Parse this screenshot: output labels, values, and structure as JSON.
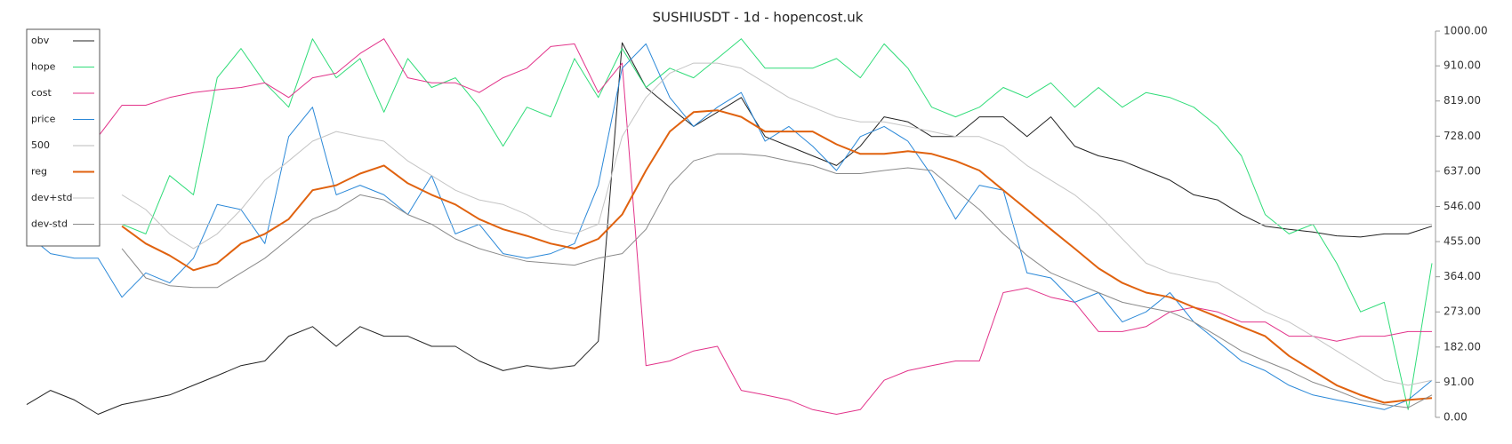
{
  "chart_data": {
    "type": "line",
    "title": "SUSHIUSDT - 1d - hopencost.uk",
    "ylim": [
      0,
      1000
    ],
    "yticks": [
      {
        "value": 0,
        "label": "0.00"
      },
      {
        "value": 91,
        "label": "91.00"
      },
      {
        "value": 182,
        "label": "182.00"
      },
      {
        "value": 273,
        "label": "273.00"
      },
      {
        "value": 364,
        "label": "364.00"
      },
      {
        "value": 455,
        "label": "455.00"
      },
      {
        "value": 546,
        "label": "546.00"
      },
      {
        "value": 637,
        "label": "637.00"
      },
      {
        "value": 728,
        "label": "728.00"
      },
      {
        "value": 819,
        "label": "819.00"
      },
      {
        "value": 910,
        "label": "910.00"
      },
      {
        "value": 1000,
        "label": "1000.00"
      }
    ],
    "y_axis_side": "right",
    "grid": false,
    "legend": "upper left",
    "series": [
      {
        "name": "obv",
        "color": "#222222",
        "width": 1,
        "values": [
          33,
          70,
          45,
          8,
          33,
          45,
          58,
          83,
          108,
          134,
          146,
          210,
          235,
          184,
          235,
          210,
          210,
          184,
          184,
          146,
          121,
          134,
          126,
          134,
          197,
          970,
          854,
          803,
          753,
          790,
          828,
          727,
          702,
          677,
          652,
          702,
          778,
          765,
          727,
          727,
          778,
          778,
          727,
          778,
          702,
          677,
          664,
          639,
          614,
          576,
          563,
          525,
          495,
          487,
          480,
          470,
          467,
          475,
          475,
          495
        ]
      },
      {
        "name": "hope",
        "color": "#2fdc78",
        "width": 1,
        "values": [
          null,
          null,
          null,
          null,
          500,
          475,
          626,
          576,
          879,
          955,
          866,
          803,
          980,
          879,
          929,
          790,
          929,
          854,
          879,
          803,
          702,
          803,
          778,
          929,
          828,
          955,
          854,
          904,
          879,
          929,
          980,
          904,
          904,
          904,
          929,
          879,
          967,
          904,
          803,
          778,
          803,
          854,
          828,
          866,
          803,
          854,
          803,
          841,
          828,
          803,
          753,
          677,
          525,
          475,
          500,
          399,
          273,
          298,
          20,
          399
        ]
      },
      {
        "name": "cost",
        "color": "#e2338a",
        "width": 1,
        "values": [
          null,
          null,
          null,
          727,
          808,
          808,
          828,
          841,
          848,
          854,
          866,
          828,
          879,
          891,
          942,
          980,
          879,
          866,
          866,
          841,
          879,
          904,
          960,
          967,
          841,
          917,
          134,
          146,
          172,
          184,
          70,
          58,
          45,
          20,
          8,
          20,
          96,
          121,
          134,
          146,
          146,
          323,
          335,
          311,
          298,
          222,
          222,
          235,
          273,
          285,
          273,
          247,
          247,
          210,
          210,
          197,
          210,
          210,
          222,
          222
        ]
      },
      {
        "name": "price",
        "color": "#2a88d8",
        "width": 1,
        "values": [
          475,
          424,
          412,
          412,
          311,
          374,
          348,
          412,
          551,
          538,
          450,
          727,
          803,
          576,
          601,
          576,
          525,
          626,
          475,
          500,
          424,
          412,
          424,
          450,
          601,
          904,
          967,
          828,
          753,
          803,
          841,
          715,
          753,
          702,
          639,
          727,
          753,
          715,
          626,
          513,
          601,
          588,
          374,
          361,
          298,
          323,
          247,
          273,
          323,
          247,
          197,
          146,
          121,
          83,
          58,
          45,
          33,
          20,
          45,
          96
        ]
      },
      {
        "name": "500",
        "color": "#bbbbbb",
        "width": 1,
        "values": [
          500,
          500,
          500,
          500,
          500,
          500,
          500,
          500,
          500,
          500,
          500,
          500,
          500,
          500,
          500,
          500,
          500,
          500,
          500,
          500,
          500,
          500,
          500,
          500,
          500,
          500,
          500,
          500,
          500,
          500,
          500,
          500,
          500,
          500,
          500,
          500,
          500,
          500,
          500,
          500,
          500,
          500,
          500,
          500,
          500,
          500,
          500,
          500,
          500,
          500,
          500,
          500,
          500,
          500,
          500,
          500,
          500,
          500,
          500,
          500
        ]
      },
      {
        "name": "reg",
        "color": "#e0620f",
        "width": 2,
        "values": [
          null,
          null,
          null,
          null,
          495,
          450,
          419,
          381,
          399,
          450,
          475,
          513,
          588,
          601,
          631,
          652,
          606,
          576,
          551,
          513,
          487,
          470,
          450,
          437,
          462,
          525,
          639,
          740,
          790,
          795,
          778,
          740,
          740,
          740,
          707,
          682,
          682,
          689,
          682,
          664,
          639,
          588,
          538,
          487,
          437,
          386,
          348,
          323,
          311,
          285,
          260,
          235,
          210,
          159,
          121,
          83,
          58,
          38,
          45,
          50
        ]
      },
      {
        "name": "dev+std",
        "color": "#c4c4c4",
        "width": 1,
        "values": [
          null,
          null,
          null,
          null,
          576,
          538,
          475,
          437,
          475,
          538,
          614,
          664,
          715,
          740,
          727,
          715,
          664,
          626,
          588,
          563,
          551,
          525,
          487,
          475,
          500,
          727,
          828,
          891,
          917,
          917,
          904,
          866,
          828,
          803,
          778,
          765,
          765,
          753,
          740,
          727,
          727,
          702,
          652,
          614,
          576,
          525,
          462,
          399,
          374,
          361,
          348,
          311,
          273,
          247,
          210,
          172,
          134,
          96,
          83,
          96
        ]
      },
      {
        "name": "dev-std",
        "color": "#8a8a8a",
        "width": 1,
        "values": [
          null,
          null,
          null,
          null,
          437,
          361,
          341,
          336,
          336,
          374,
          412,
          462,
          513,
          538,
          576,
          563,
          525,
          500,
          462,
          437,
          419,
          404,
          399,
          394,
          412,
          424,
          487,
          601,
          664,
          682,
          682,
          677,
          664,
          652,
          631,
          631,
          639,
          646,
          639,
          588,
          538,
          475,
          419,
          374,
          348,
          323,
          298,
          285,
          273,
          247,
          210,
          172,
          146,
          121,
          91,
          70,
          45,
          33,
          25,
          58
        ]
      }
    ]
  }
}
